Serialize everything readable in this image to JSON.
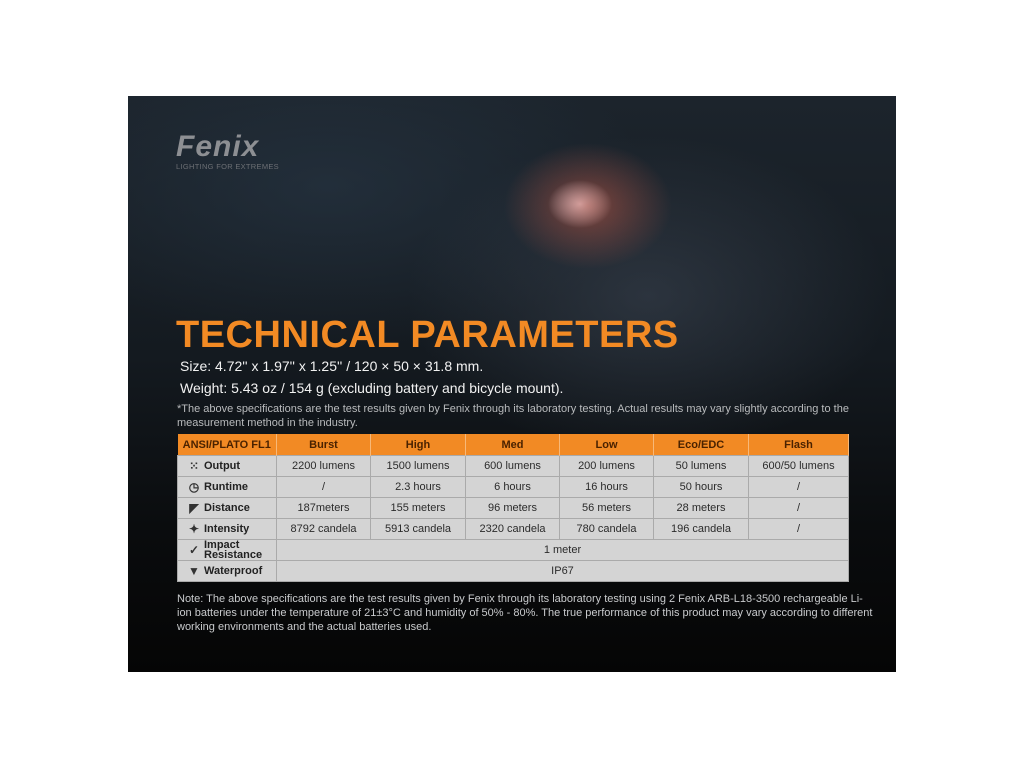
{
  "brand": {
    "name": "FENIX",
    "tagline": "LIGHTING FOR EXTREMES"
  },
  "title": "TECHNICAL PARAMETERS",
  "size": "Size: 4.72'' x 1.97'' x 1.25'' / 120 × 50 × 31.8 mm.",
  "weight": "Weight: 5.43 oz / 154 g (excluding battery and bicycle mount).",
  "disclaimer": "*The above specifications are the test results given by Fenix through its laboratory testing. Actual results may vary slightly according to the measurement method in the industry.",
  "table": {
    "headers": [
      "ANSI/PLATO  FL1",
      "Burst",
      "High",
      "Med",
      "Low",
      "Eco/EDC",
      "Flash"
    ],
    "rows": [
      {
        "label": "Output",
        "icon": "light-rays-icon",
        "values": [
          "2200 lumens",
          "1500 lumens",
          "600 lumens",
          "200 lumens",
          "50 lumens",
          "600/50 lumens"
        ]
      },
      {
        "label": "Runtime",
        "icon": "clock-icon",
        "values": [
          "/",
          "2.3 hours",
          "6 hours",
          "16 hours",
          "50 hours",
          "/"
        ]
      },
      {
        "label": "Distance",
        "icon": "beam-distance-icon",
        "values": [
          "187meters",
          "155 meters",
          "96 meters",
          "56 meters",
          "28 meters",
          "/"
        ]
      },
      {
        "label": "Intensity",
        "icon": "intensity-icon",
        "values": [
          "8792 candela",
          "5913 candela",
          "2320 candela",
          "780 candela",
          "196 candela",
          "/"
        ]
      },
      {
        "label1": "Impact",
        "label2": "Resistance",
        "icon": "impact-check-icon",
        "value": "1 meter"
      },
      {
        "label": "Waterproof",
        "icon": "waterproof-icon",
        "value": "IP67"
      }
    ]
  },
  "note": "Note: The above specifications are the test results given by Fenix through its laboratory testing using 2 Fenix ARB-L18-3500 rechargeable Li-ion batteries under the temperature of 21±3°C and humidity of 50% - 80%. The true performance of this product may vary according to different working environments and the actual batteries used.",
  "colors": {
    "accent": "#f28a24",
    "table_bg": "#d4d4d4"
  }
}
